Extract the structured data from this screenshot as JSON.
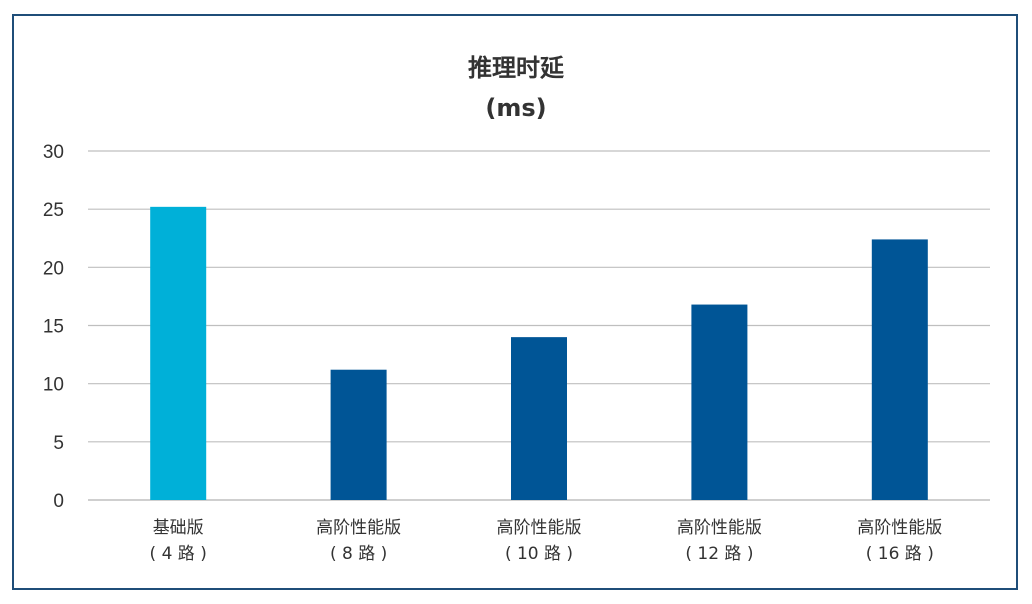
{
  "chart_data": {
    "type": "bar",
    "title": "推理时延",
    "subtitle": "(ms)",
    "categories": [
      {
        "line1": "基础版",
        "line2": "( 4 路 )"
      },
      {
        "line1": "高阶性能版",
        "line2": "( 8 路 )"
      },
      {
        "line1": "高阶性能版",
        "line2": "( 10 路 )"
      },
      {
        "line1": "高阶性能版",
        "line2": "( 12 路 )"
      },
      {
        "line1": "高阶性能版",
        "line2": "( 16 路 )"
      }
    ],
    "values": [
      25.2,
      11.2,
      14.0,
      16.8,
      22.4
    ],
    "bar_colors": [
      "#00b0d8",
      "#005596",
      "#005596",
      "#005596",
      "#005596"
    ],
    "ylim": [
      0,
      30
    ],
    "yticks": [
      "0",
      "5",
      "10",
      "15",
      "20",
      "25",
      "30"
    ],
    "grid": true,
    "xlabel": "",
    "ylabel": ""
  },
  "colors": {
    "frame_border": "#1f4e79",
    "gridline": "#bfbfbf",
    "text": "#333333"
  }
}
